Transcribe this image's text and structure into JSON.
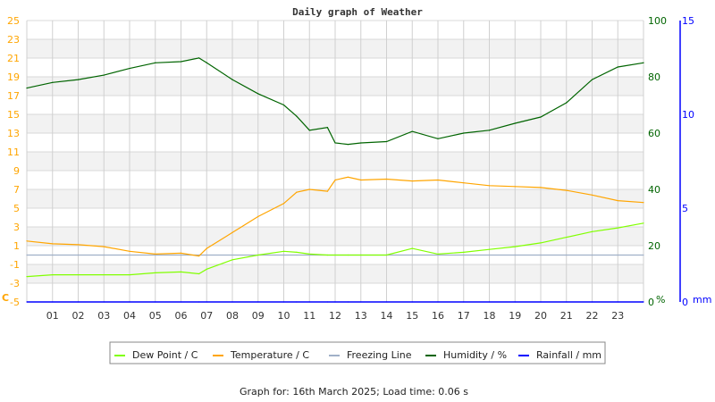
{
  "chart_data": {
    "type": "line",
    "title": "Daily graph of Weather",
    "footer": "Graph for: 16th March 2025; Load time: 0.06 s",
    "x_ticks": [
      "01",
      "02",
      "03",
      "04",
      "05",
      "06",
      "07",
      "08",
      "09",
      "10",
      "11",
      "12",
      "13",
      "14",
      "15",
      "16",
      "17",
      "18",
      "19",
      "20",
      "21",
      "22",
      "23"
    ],
    "xlim": [
      0,
      24
    ],
    "left_axis": {
      "label": "C",
      "ylim": [
        -5,
        25
      ],
      "ticks": [
        "25",
        "23",
        "21",
        "19",
        "17",
        "15",
        "13",
        "11",
        "9",
        "7",
        "5",
        "3",
        "1",
        "-1",
        "-3",
        "-5"
      ],
      "color": "#ffa500"
    },
    "right_axis_humidity": {
      "label": "%",
      "ylim": [
        0,
        100
      ],
      "ticks": [
        "100",
        "80",
        "60",
        "40",
        "20",
        "0"
      ],
      "color": "#006400"
    },
    "right_axis_rain": {
      "label": "mm",
      "ylim": [
        0,
        15
      ],
      "ticks": [
        "15",
        "10",
        "5",
        "0"
      ],
      "color": "#0000ff"
    },
    "grid": true,
    "legend_position": "bottom",
    "x": [
      0,
      1,
      2,
      3,
      4,
      5,
      6,
      6.7,
      7,
      8,
      9,
      10,
      10.5,
      11,
      11.7,
      12,
      12.5,
      13,
      14,
      15,
      16,
      17,
      18,
      19,
      20,
      21,
      22,
      23,
      24
    ],
    "series": [
      {
        "name": "Dew Point / C",
        "color": "#80ff00",
        "axis": "left",
        "values": [
          -2.3,
          -2.1,
          -2.1,
          -2.1,
          -2.1,
          -1.9,
          -1.8,
          -2.0,
          -1.5,
          -0.5,
          0.0,
          0.4,
          0.3,
          0.1,
          0.0,
          0.0,
          0.0,
          0.0,
          0.0,
          0.7,
          0.1,
          0.3,
          0.6,
          0.9,
          1.3,
          1.9,
          2.5,
          2.9,
          3.4
        ]
      },
      {
        "name": "Temperature / C",
        "color": "#ffa500",
        "axis": "left",
        "values": [
          1.5,
          1.2,
          1.1,
          0.9,
          0.4,
          0.1,
          0.2,
          -0.1,
          0.7,
          2.4,
          4.1,
          5.5,
          6.7,
          7.0,
          6.8,
          8.0,
          8.3,
          8.0,
          8.1,
          7.9,
          8.0,
          7.7,
          7.4,
          7.3,
          7.2,
          6.9,
          6.4,
          5.8,
          5.6
        ]
      },
      {
        "name": "Freezing Line",
        "color": "#a0b0c8",
        "axis": "left",
        "values": [
          0,
          0,
          0,
          0,
          0,
          0,
          0,
          0,
          0,
          0,
          0,
          0,
          0,
          0,
          0,
          0,
          0,
          0,
          0,
          0,
          0,
          0,
          0,
          0,
          0,
          0,
          0,
          0,
          0
        ]
      },
      {
        "name": "Humidity / %",
        "color": "#006400",
        "axis": "humidity",
        "values": [
          76,
          78,
          79,
          80.6,
          83,
          85,
          85.4,
          86.7,
          85,
          79,
          74,
          70,
          66,
          61,
          62,
          56.5,
          56,
          56.5,
          57,
          60.6,
          58,
          60,
          61,
          63.5,
          65.7,
          70.8,
          79,
          83.5,
          85
        ]
      },
      {
        "name": "Rainfall / mm",
        "color": "#0000ff",
        "axis": "rain",
        "values": [
          0,
          0,
          0,
          0,
          0,
          0,
          0,
          0,
          0,
          0,
          0,
          0,
          0,
          0,
          0,
          0,
          0,
          0,
          0,
          0,
          0,
          0,
          0,
          0,
          0,
          0,
          0,
          0,
          0
        ]
      }
    ]
  }
}
